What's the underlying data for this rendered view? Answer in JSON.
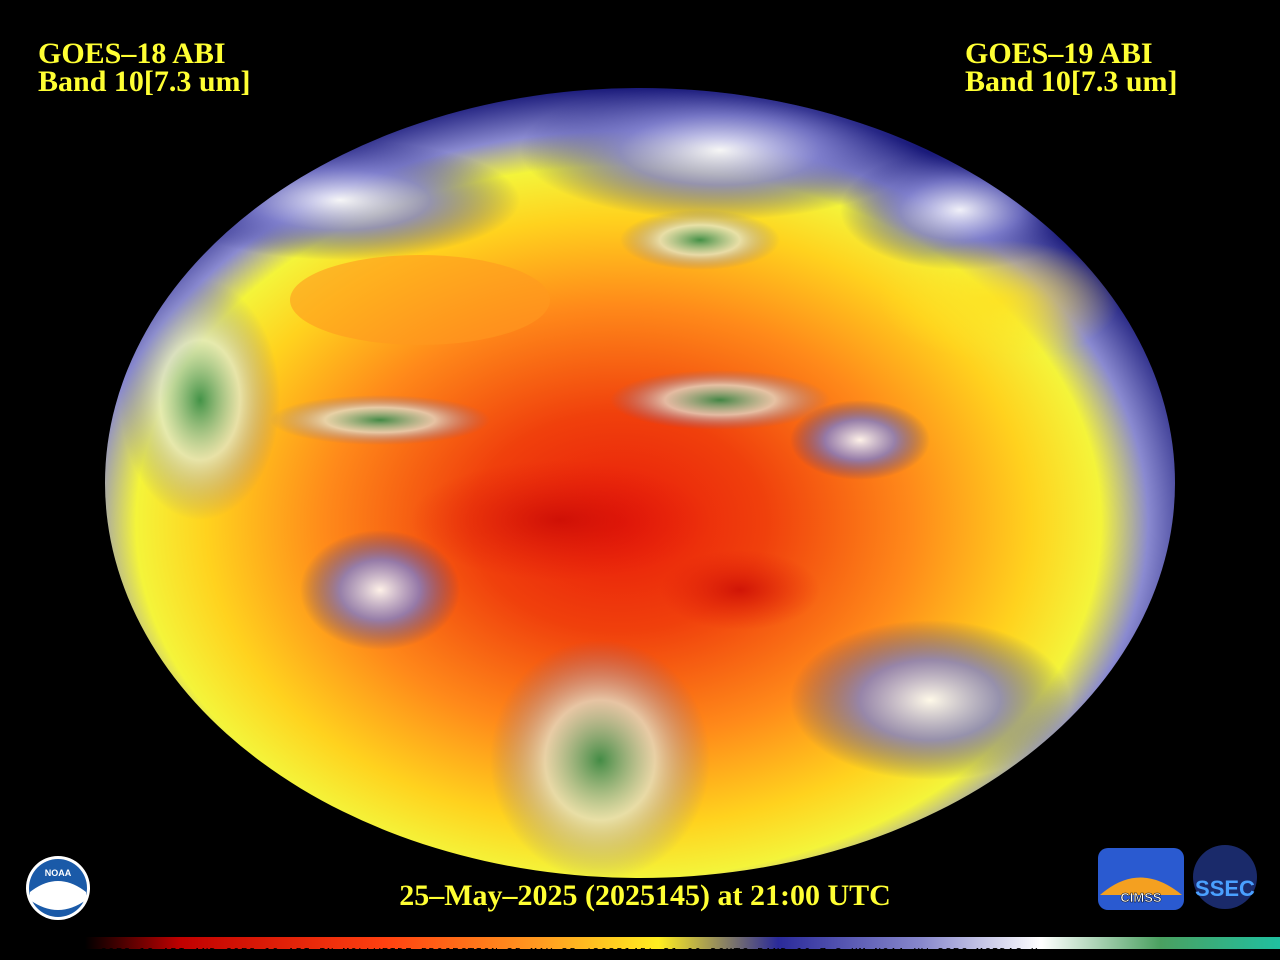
{
  "header": {
    "left_title": "GOES–18 ABI",
    "left_band": "Band 10[7.3 um]",
    "right_title": "GOES–19 ABI",
    "right_band": "Band 10[7.3 um]"
  },
  "timestamp": "25–May–2025 (2025145) at 21:00 UTC",
  "footer": "GOES-18 ABI AND GOES-19 ABI IN MOLLWEIDE PROJECTION 25 MAY 25 (2025145) 21:00:20UTC BAND-10 7.3 UM NOAA UW-SSEC MCIDAS-X",
  "logos": {
    "noaa": "NOAA",
    "cimss": "CIMSS",
    "ssec": "SSEC"
  }
}
